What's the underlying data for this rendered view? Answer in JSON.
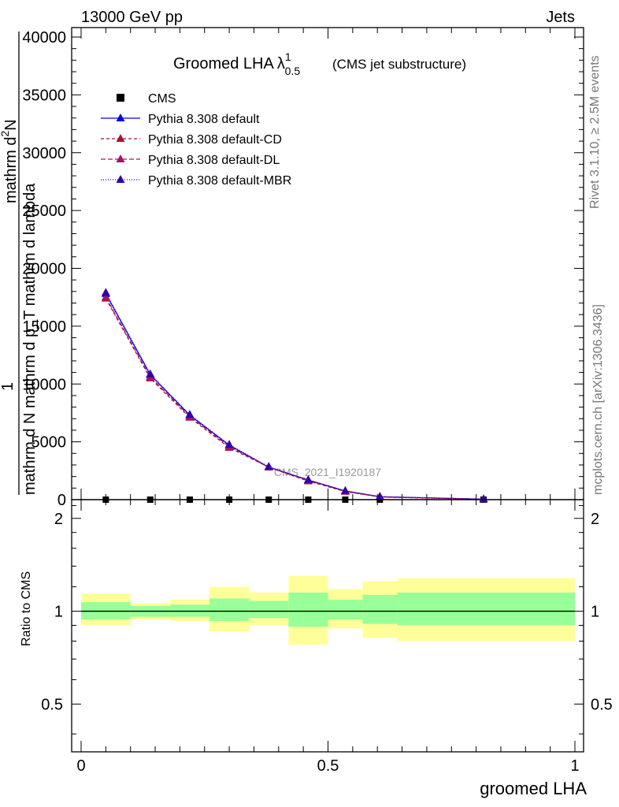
{
  "header": {
    "left": "13000 GeV pp",
    "right": "Jets"
  },
  "side_text": {
    "top": "Rivet 3.1.10, ≥ 2.5M events",
    "bottom": "mcplots.cern.ch [arXiv:1306.3436]"
  },
  "watermark": "CMS_2021_I1920187",
  "chart_data": [
    {
      "type": "line",
      "title_main": "Groomed LHA",
      "title_symbol": "λ",
      "title_superscript": "1",
      "title_subscript": "0.5",
      "title_note": "(CMS jet substructure)",
      "ylabel_top": "mathrm d",
      "ylabel_sup": "2",
      "ylabel_N": "N",
      "ylabel_one": "1",
      "ylabel_den_a": "mathrm d p",
      "ylabel_den_b": "T",
      "ylabel_den_c": " mathrm d \\lambda",
      "ylabel_full": "mathrm d N mathrm d p_T mathrm d lambda",
      "xlim": [
        0,
        1
      ],
      "ylim": [
        0,
        40000
      ],
      "yticks": [
        0,
        5000,
        10000,
        15000,
        20000,
        25000,
        30000,
        35000,
        40000
      ],
      "ytick_labels": [
        "0",
        "5000",
        "10000",
        "15000",
        "20000",
        "25000",
        "30000",
        "35000",
        "40000"
      ],
      "legend_position": "top-left",
      "x": [
        0.05,
        0.14,
        0.22,
        0.3,
        0.38,
        0.46,
        0.535,
        0.605,
        0.815
      ],
      "series": [
        {
          "name": "CMS",
          "color": "#000000",
          "marker": "square",
          "values": [
            0,
            0,
            0,
            0,
            0,
            0,
            0,
            0,
            0
          ]
        },
        {
          "name": "Pythia 8.308 default",
          "color": "#0000ee",
          "marker": "triangle",
          "dash": "solid",
          "values": [
            17800,
            10800,
            7300,
            4700,
            2800,
            1700,
            750,
            250,
            40
          ]
        },
        {
          "name": "Pythia 8.308 default-CD",
          "color": "#aa1133",
          "marker": "triangle",
          "dash": "4,3",
          "values": [
            17400,
            10500,
            7100,
            4500,
            2800,
            1600,
            700,
            230,
            30
          ]
        },
        {
          "name": "Pythia 8.308 default-DL",
          "color": "#aa1166",
          "marker": "triangle",
          "dash": "6,3",
          "values": [
            17500,
            10600,
            7200,
            4600,
            2800,
            1650,
            720,
            240,
            35
          ]
        },
        {
          "name": "Pythia 8.308 default-MBR",
          "color": "#3300aa",
          "marker": "triangle",
          "dash": "1,2",
          "values": [
            17900,
            10850,
            7350,
            4750,
            2850,
            1700,
            760,
            260,
            45
          ]
        }
      ]
    },
    {
      "type": "area",
      "ylabel": "Ratio to CMS",
      "xlabel": "groomed LHA",
      "xlim": [
        0,
        1
      ],
      "ylim": [
        0.35,
        2.3
      ],
      "scale": "log",
      "yticks": [
        0.5,
        1,
        2
      ],
      "ytick_labels": [
        "0.5",
        "1",
        "2"
      ],
      "xticks": [
        0,
        0.5,
        1
      ],
      "xtick_labels": [
        "0",
        "0.5",
        "1"
      ],
      "reference_line": 1,
      "band_colors": {
        "outer": "#ffff99",
        "inner": "#99ff99"
      },
      "bins": [
        {
          "lo": 0.0,
          "hi": 0.1,
          "yellow": [
            0.9,
            1.14
          ],
          "green": [
            0.94,
            1.07
          ]
        },
        {
          "lo": 0.1,
          "hi": 0.18,
          "yellow": [
            0.94,
            1.06
          ],
          "green": [
            0.96,
            1.04
          ]
        },
        {
          "lo": 0.18,
          "hi": 0.26,
          "yellow": [
            0.93,
            1.09
          ],
          "green": [
            0.96,
            1.05
          ]
        },
        {
          "lo": 0.26,
          "hi": 0.34,
          "yellow": [
            0.86,
            1.2
          ],
          "green": [
            0.93,
            1.1
          ]
        },
        {
          "lo": 0.34,
          "hi": 0.42,
          "yellow": [
            0.9,
            1.15
          ],
          "green": [
            0.95,
            1.08
          ]
        },
        {
          "lo": 0.42,
          "hi": 0.5,
          "yellow": [
            0.78,
            1.3
          ],
          "green": [
            0.89,
            1.15
          ]
        },
        {
          "lo": 0.5,
          "hi": 0.57,
          "yellow": [
            0.88,
            1.18
          ],
          "green": [
            0.94,
            1.09
          ]
        },
        {
          "lo": 0.57,
          "hi": 0.64,
          "yellow": [
            0.82,
            1.25
          ],
          "green": [
            0.91,
            1.13
          ]
        },
        {
          "lo": 0.64,
          "hi": 1.0,
          "yellow": [
            0.8,
            1.28
          ],
          "green": [
            0.9,
            1.15
          ]
        }
      ]
    }
  ]
}
